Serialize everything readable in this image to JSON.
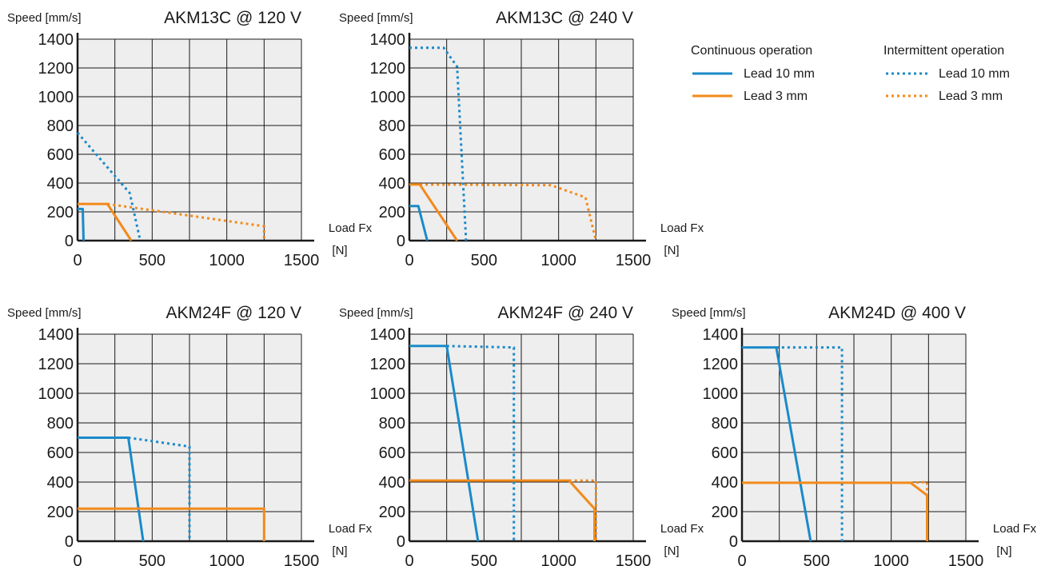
{
  "colors": {
    "lead10": "#1a8ac9",
    "lead3": "#f28a1a",
    "plot_bg": "#eeeeee",
    "grid": "#1a1a1a"
  },
  "legend": {
    "continuous_heading": "Continuous  operation",
    "intermittent_heading": "Intermittent operation",
    "lead10_label": "Lead 10 mm",
    "lead3_label": "Lead 3 mm",
    "intermittent_lead10_label": "Lead 10 mm",
    "intermittent_lead3_label": "Lead 3 mm"
  },
  "chart_data": [
    {
      "type": "line",
      "title": "AKM13C @ 120 V",
      "ylabel": "Speed [mm/s]",
      "xlabel": "Load Fx",
      "xunit": "[N]",
      "xlim": [
        0,
        1500
      ],
      "ylim": [
        0,
        1400
      ],
      "xticks": [
        "0",
        "500",
        "1000",
        "1500"
      ],
      "yticks": [
        "0",
        "200",
        "400",
        "600",
        "800",
        "1000",
        "1200",
        "1400"
      ],
      "grid": true,
      "series": [
        {
          "name": "Lead 10 mm",
          "style": "continuous",
          "points": [
            [
              0,
              220
            ],
            [
              35,
              220
            ],
            [
              40,
              0
            ]
          ]
        },
        {
          "name": "Lead 3 mm",
          "style": "continuous",
          "points": [
            [
              0,
              255
            ],
            [
              200,
              255
            ],
            [
              360,
              0
            ]
          ]
        },
        {
          "name": "Lead 10 mm",
          "style": "intermittent",
          "points": [
            [
              0,
              750
            ],
            [
              350,
              330
            ],
            [
              420,
              0
            ]
          ]
        },
        {
          "name": "Lead 3 mm",
          "style": "intermittent",
          "points": [
            [
              200,
              255
            ],
            [
              1250,
              100
            ],
            [
              1250,
              0
            ]
          ]
        }
      ]
    },
    {
      "type": "line",
      "title": "AKM13C @  240 V",
      "ylabel": "Speed [mm/s]",
      "xlabel": "Load Fx",
      "xunit": "[N]",
      "xlim": [
        0,
        1500
      ],
      "ylim": [
        0,
        1400
      ],
      "xticks": [
        "0",
        "500",
        "1000",
        "1500"
      ],
      "yticks": [
        "0",
        "200",
        "400",
        "600",
        "800",
        "1000",
        "1200",
        "1400"
      ],
      "grid": true,
      "series": [
        {
          "name": "Lead 10 mm",
          "style": "continuous",
          "points": [
            [
              0,
              240
            ],
            [
              60,
              240
            ],
            [
              120,
              0
            ]
          ]
        },
        {
          "name": "Lead 3 mm",
          "style": "continuous",
          "points": [
            [
              0,
              390
            ],
            [
              70,
              390
            ],
            [
              320,
              0
            ]
          ]
        },
        {
          "name": "Lead 10 mm",
          "style": "intermittent",
          "points": [
            [
              0,
              1340
            ],
            [
              230,
              1340
            ],
            [
              320,
              1210
            ],
            [
              380,
              0
            ]
          ]
        },
        {
          "name": "Lead 3 mm",
          "style": "intermittent",
          "points": [
            [
              70,
              390
            ],
            [
              950,
              385
            ],
            [
              1180,
              300
            ],
            [
              1250,
              0
            ]
          ]
        }
      ]
    },
    {
      "type": "line",
      "title": "AKM24F @ 120 V",
      "ylabel": "Speed [mm/s]",
      "xlabel": "Load Fx",
      "xunit": "[N]",
      "xlim": [
        0,
        1500
      ],
      "ylim": [
        0,
        1400
      ],
      "xticks": [
        "0",
        "500",
        "1000",
        "1500"
      ],
      "yticks": [
        "0",
        "200",
        "400",
        "600",
        "800",
        "1000",
        "1200",
        "1400"
      ],
      "grid": true,
      "series": [
        {
          "name": "Lead 10 mm",
          "style": "continuous",
          "points": [
            [
              0,
              700
            ],
            [
              340,
              700
            ],
            [
              440,
              0
            ]
          ]
        },
        {
          "name": "Lead 3 mm",
          "style": "continuous",
          "points": [
            [
              0,
              220
            ],
            [
              1250,
              220
            ],
            [
              1250,
              0
            ]
          ]
        },
        {
          "name": "Lead 10 mm",
          "style": "intermittent",
          "points": [
            [
              340,
              700
            ],
            [
              750,
              640
            ],
            [
              750,
              0
            ]
          ]
        }
      ]
    },
    {
      "type": "line",
      "title": "AKM24F @ 240 V",
      "ylabel": "Speed [mm/s]",
      "xlabel": "Load Fx",
      "xunit": "[N]",
      "xlim": [
        0,
        1500
      ],
      "ylim": [
        0,
        1400
      ],
      "xticks": [
        "0",
        "500",
        "1000",
        "1500"
      ],
      "yticks": [
        "0",
        "200",
        "400",
        "600",
        "800",
        "1000",
        "1200",
        "1400"
      ],
      "grid": true,
      "series": [
        {
          "name": "Lead 10 mm",
          "style": "continuous",
          "points": [
            [
              0,
              1320
            ],
            [
              250,
              1320
            ],
            [
              460,
              0
            ]
          ]
        },
        {
          "name": "Lead 3 mm",
          "style": "continuous",
          "points": [
            [
              0,
              410
            ],
            [
              1070,
              410
            ],
            [
              1240,
              220
            ],
            [
              1240,
              0
            ]
          ]
        },
        {
          "name": "Lead 10 mm",
          "style": "intermittent",
          "points": [
            [
              250,
              1320
            ],
            [
              700,
              1310
            ],
            [
              700,
              0
            ]
          ]
        },
        {
          "name": "Lead 3 mm",
          "style": "intermittent",
          "points": [
            [
              1070,
              410
            ],
            [
              1250,
              410
            ],
            [
              1250,
              0
            ]
          ]
        }
      ]
    },
    {
      "type": "line",
      "title": "AKM24D @ 400 V",
      "ylabel": "Speed [mm/s]",
      "xlabel": "Load Fx",
      "xunit": "[N]",
      "xlim": [
        0,
        1500
      ],
      "ylim": [
        0,
        1400
      ],
      "xticks": [
        "0",
        "500",
        "1000",
        "1500"
      ],
      "yticks": [
        "0",
        "200",
        "400",
        "600",
        "800",
        "1000",
        "1200",
        "1400"
      ],
      "grid": true,
      "series": [
        {
          "name": "Lead 10 mm",
          "style": "continuous",
          "points": [
            [
              0,
              1310
            ],
            [
              230,
              1310
            ],
            [
              460,
              0
            ]
          ]
        },
        {
          "name": "Lead 3 mm",
          "style": "continuous",
          "points": [
            [
              0,
              395
            ],
            [
              1130,
              395
            ],
            [
              1240,
              310
            ],
            [
              1240,
              0
            ]
          ]
        },
        {
          "name": "Lead 10 mm",
          "style": "intermittent",
          "points": [
            [
              230,
              1310
            ],
            [
              670,
              1310
            ],
            [
              670,
              0
            ]
          ]
        },
        {
          "name": "Lead 3 mm",
          "style": "intermittent",
          "points": [
            [
              1130,
              395
            ],
            [
              1240,
              400
            ],
            [
              1240,
              310
            ]
          ]
        }
      ]
    }
  ]
}
